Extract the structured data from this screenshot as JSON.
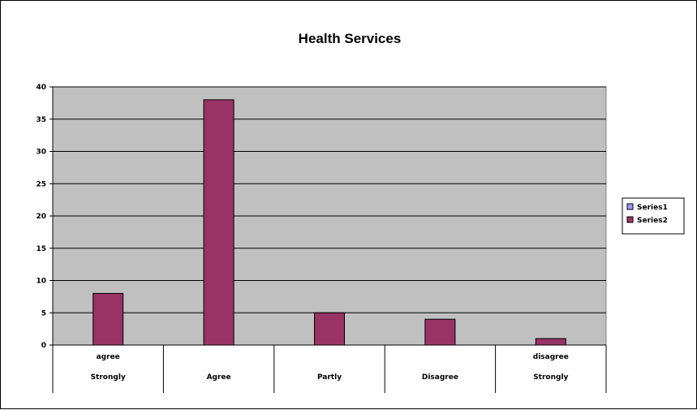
{
  "chart_data": {
    "type": "bar",
    "title": "Health Services",
    "xlabel": "",
    "ylabel": "",
    "categories": [
      [
        "agree",
        "Strongly"
      ],
      [
        "",
        "Agree"
      ],
      [
        "",
        "Partly"
      ],
      [
        "",
        "Disagree"
      ],
      [
        "disagree",
        "Strongly"
      ]
    ],
    "series": [
      {
        "name": "Series1",
        "values": [
          0,
          0,
          0,
          0,
          0
        ],
        "color": "#9999ff"
      },
      {
        "name": "Series2",
        "values": [
          8,
          38,
          5,
          4,
          1
        ],
        "color": "#993366"
      }
    ],
    "ylim": [
      0,
      40
    ],
    "yticks": [
      0,
      5,
      10,
      15,
      20,
      25,
      30,
      35,
      40
    ],
    "grid": true,
    "plot_background": "#c0c0c0",
    "legend": "right"
  }
}
